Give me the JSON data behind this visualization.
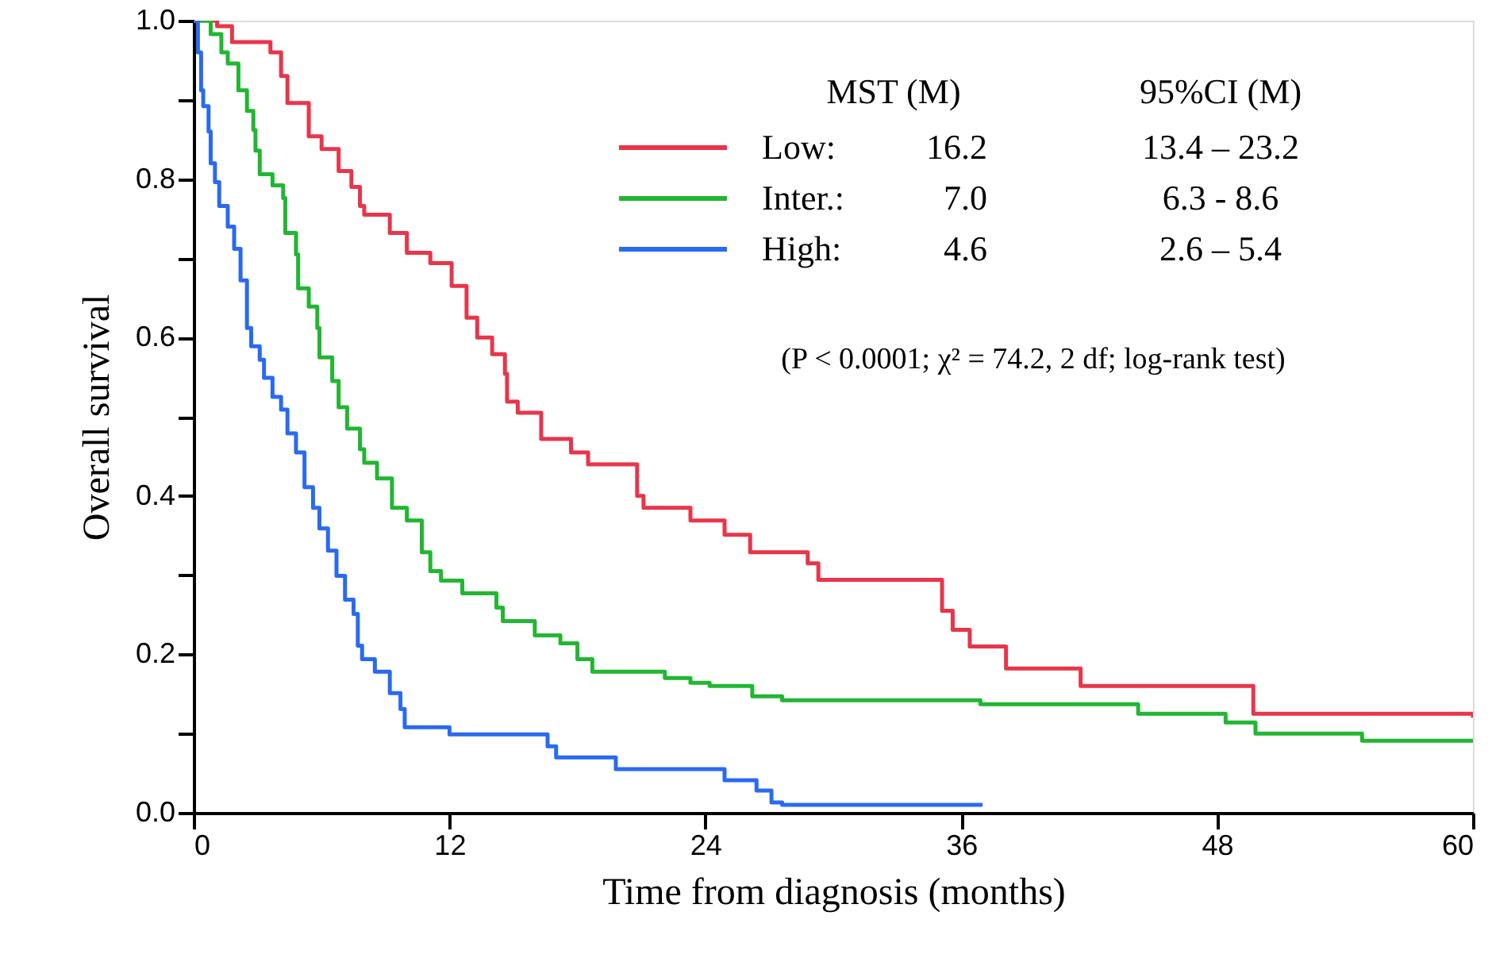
{
  "chart_data": {
    "type": "step",
    "xlabel": "Time from diagnosis (months)",
    "ylabel": "Overall survival",
    "xlim": [
      0,
      60
    ],
    "xticks": [
      0,
      12,
      24,
      36,
      48,
      60
    ],
    "ylim": [
      0,
      1.0
    ],
    "yticks": [
      {
        "value": 0,
        "label": "0.0"
      },
      {
        "value": 0.1,
        "label": null
      },
      {
        "value": 0.2,
        "label": "0.2"
      },
      {
        "value": 0.3,
        "label": null
      },
      {
        "value": 0.4,
        "label": "0.4"
      },
      {
        "value": 0.5,
        "label": null
      },
      {
        "value": 0.6,
        "label": "0.6"
      },
      {
        "value": 0.7,
        "label": null
      },
      {
        "value": 0.8,
        "label": "0.8"
      },
      {
        "value": 0.9,
        "label": null
      },
      {
        "value": 1.0,
        "label": "1.0"
      }
    ],
    "grid": false,
    "legend": "top",
    "marker": "none",
    "line_style": "solid",
    "series": [
      {
        "name": "Low:",
        "color": "#e8354a",
        "x": [
          0,
          1.1,
          1.8,
          3.6,
          4.1,
          4.4,
          5.4,
          6.0,
          6.8,
          7.4,
          7.8,
          8.0,
          9.2,
          10.0,
          11.1,
          12.1,
          12.8,
          13.3,
          14.0,
          14.6,
          14.7,
          15.2,
          16.3,
          17.7,
          18.5,
          20.8,
          21.1,
          23.3,
          24.9,
          26.1,
          28.8,
          29.3,
          35.1,
          35.6,
          36.4,
          38.1,
          41.6,
          49.7,
          60
        ],
        "values": [
          1.0,
          0.993,
          0.973,
          0.96,
          0.93,
          0.896,
          0.854,
          0.838,
          0.81,
          0.79,
          0.766,
          0.755,
          0.732,
          0.707,
          0.694,
          0.665,
          0.625,
          0.6,
          0.579,
          0.554,
          0.519,
          0.505,
          0.472,
          0.455,
          0.44,
          0.4,
          0.385,
          0.369,
          0.351,
          0.329,
          0.315,
          0.294,
          0.255,
          0.231,
          0.21,
          0.182,
          0.16,
          0.125,
          0.12
        ]
      },
      {
        "name": "Inter.:",
        "color": "#22b632",
        "x": [
          0,
          0.8,
          1.3,
          1.6,
          2.1,
          2.5,
          2.8,
          2.9,
          3.1,
          3.7,
          4.2,
          4.3,
          4.8,
          4.9,
          5.4,
          5.8,
          5.9,
          6.5,
          6.8,
          7.2,
          7.8,
          8.0,
          8.6,
          9.3,
          10.0,
          10.7,
          11.1,
          11.6,
          12.6,
          14.2,
          14.5,
          16.0,
          17.2,
          18.0,
          18.7,
          22.1,
          23.3,
          24.2,
          26.2,
          27.6,
          36.9,
          44.3,
          48.4,
          49.8,
          54.8,
          60
        ],
        "values": [
          1.0,
          0.983,
          0.96,
          0.946,
          0.912,
          0.886,
          0.862,
          0.836,
          0.806,
          0.792,
          0.776,
          0.732,
          0.705,
          0.662,
          0.639,
          0.612,
          0.575,
          0.545,
          0.512,
          0.485,
          0.459,
          0.442,
          0.422,
          0.385,
          0.369,
          0.329,
          0.305,
          0.293,
          0.277,
          0.259,
          0.242,
          0.224,
          0.214,
          0.194,
          0.178,
          0.17,
          0.164,
          0.16,
          0.147,
          0.142,
          0.137,
          0.125,
          0.114,
          0.1,
          0.091,
          0.09
        ]
      },
      {
        "name": "High:",
        "color": "#2a6af0",
        "x": [
          0,
          0.2,
          0.35,
          0.45,
          0.7,
          0.8,
          1.0,
          1.2,
          1.6,
          1.9,
          2.2,
          2.5,
          2.7,
          3.1,
          3.3,
          3.7,
          4.1,
          4.4,
          4.8,
          5.2,
          5.6,
          5.9,
          6.3,
          6.7,
          7.1,
          7.5,
          7.7,
          7.9,
          8.5,
          9.2,
          9.7,
          9.9,
          12.0,
          16.6,
          17.0,
          19.8,
          24.9,
          26.4,
          27.1,
          27.6,
          37.0
        ],
        "values": [
          1.0,
          0.96,
          0.912,
          0.892,
          0.86,
          0.82,
          0.796,
          0.766,
          0.74,
          0.712,
          0.672,
          0.612,
          0.589,
          0.572,
          0.549,
          0.525,
          0.509,
          0.479,
          0.455,
          0.411,
          0.385,
          0.359,
          0.331,
          0.299,
          0.269,
          0.251,
          0.211,
          0.194,
          0.178,
          0.151,
          0.131,
          0.108,
          0.099,
          0.084,
          0.07,
          0.055,
          0.041,
          0.028,
          0.013,
          0.01,
          0.01
        ]
      }
    ],
    "annotations": [
      "MST (M)",
      "95%CI (M)",
      "16.2",
      "13.4 – 23.2",
      "7.0",
      "6.3 - 8.6",
      "4.6",
      "2.6 – 5.4",
      "(P < 0.0001; χ² = 74.2, 2 df; log-rank test)"
    ]
  }
}
